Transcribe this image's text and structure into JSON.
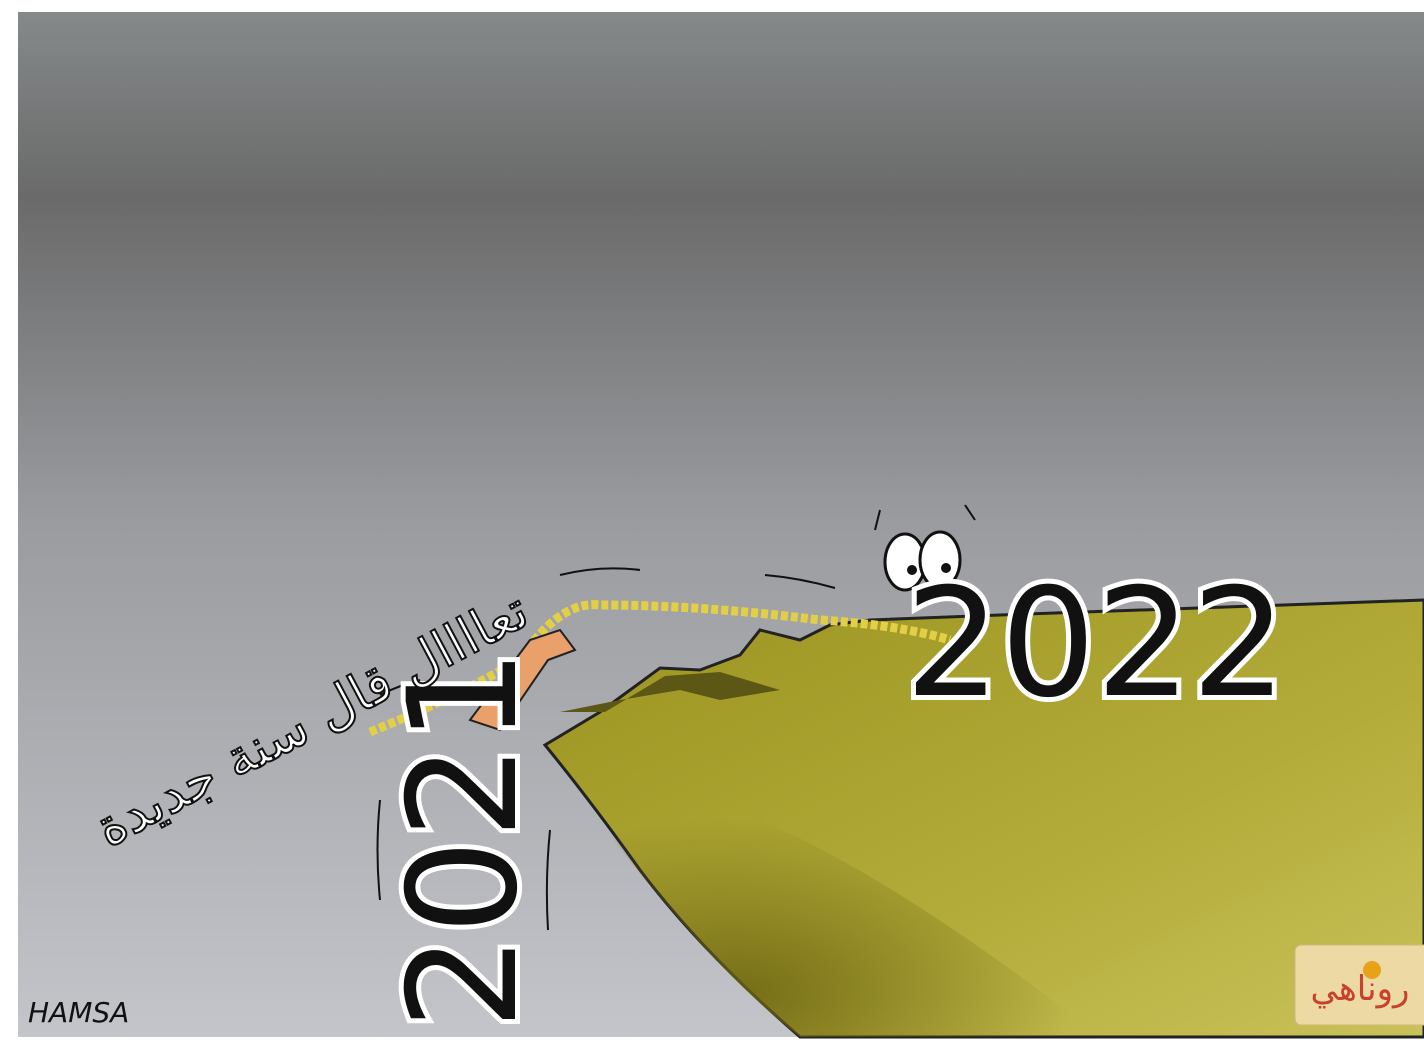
{
  "cartoon": {
    "speech": "تعاااال قال سنة جديدة",
    "new_year": "2022",
    "old_year": "2021",
    "signature": "HAMSA",
    "logo": "روناهي"
  }
}
